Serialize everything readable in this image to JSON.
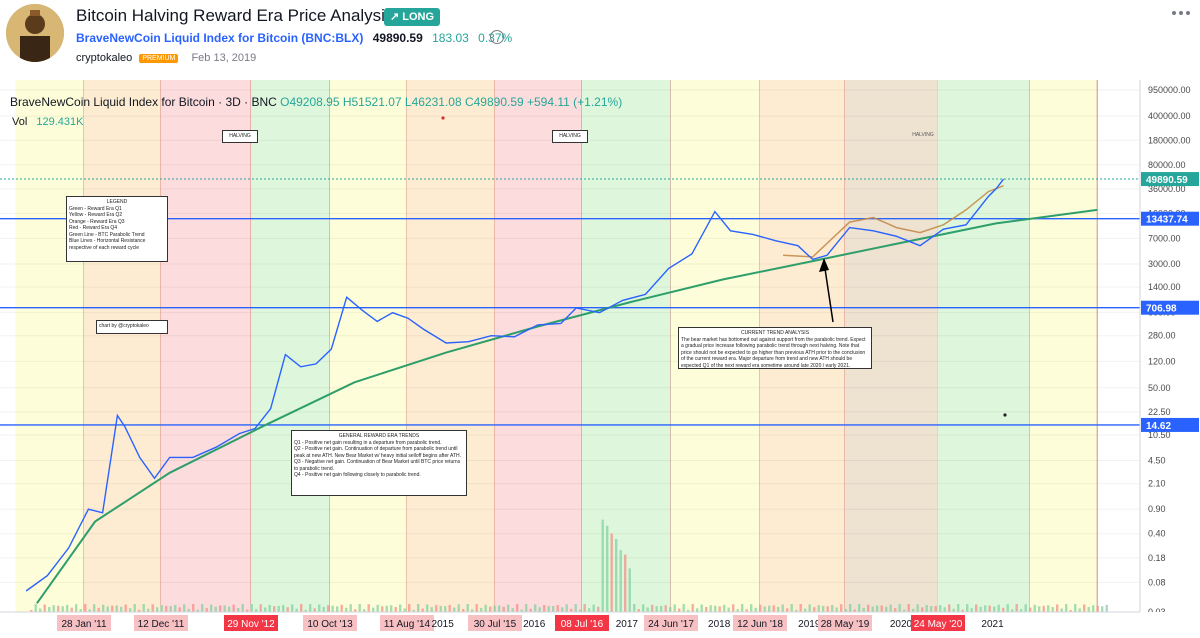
{
  "header": {
    "title": "Bitcoin Halving Reward Era Price Analysis",
    "badge": "LONG",
    "symbol_name": "BraveNewCoin Liquid Index for Bitcoin",
    "symbol_code": "(BNC:BLX)",
    "price": "49890.59",
    "change": "183.03",
    "change_pct": "0.37%",
    "author": "cryptokaleo",
    "author_badge": "PREMIUM",
    "date": "Feb 13, 2019"
  },
  "legend": {
    "instrument": "BraveNewCoin Liquid Index for Bitcoin · 3D · BNC",
    "ohlc": "O49208.95 H51521.07 L46231.08 C49890.59 +594.11 (+1.21%)",
    "vol_label": "Vol",
    "vol_value": "129.431K"
  },
  "notes": {
    "legend_box": [
      "LEGEND",
      "Green - Reward Era Q1",
      "Yellow - Reward Era Q2",
      "Orange - Reward Era Q3",
      "Red - Reward Era Q4",
      "Green Line - BTC Parabolic Trend",
      "Blue Lines - Horizontal Resistance",
      "respective of each reward cycle"
    ],
    "author_note": "chart by @cryptokaleo",
    "trend_title": "CURRENT TREND ANALYSIS",
    "trend_text": "The bear market has bottomed out against support from the parabolic trend. Expect a gradual price increase following parabolic trend through next halving. Note that price should not be expected to go higher than previous ATH prior to the conclusion of the current reward era. Major departure from trend and new ATH should be expected Q1 of the next reward era sometime around late 2020 / early 2021.",
    "general_title": "GENERAL REWARD ERA TRENDS",
    "general_lines": [
      "Q1 - Positive net gain resulting in a departure from parabolic trend.",
      "Q2 - Positive net gain. Continuation of departure from parabolic trend until peak at new ATH. New Bear Market w/ heavy initial selloff begins after ATH.",
      "Q3 - Negative net gain. Continuation of Bear Market until BTC price returns to parabolic trend.",
      "Q4 - Positive net gain following closely to parabolic trend."
    ],
    "halving_label": "HALVING"
  },
  "chart_data": {
    "type": "line",
    "title": "BraveNewCoin Liquid Index for Bitcoin · 3D · BNC",
    "y_scale": "log",
    "y_tick_labels": [
      "950000.00",
      "400000.00",
      "180000.00",
      "80000.00",
      "36000.00",
      "16000.00",
      "7000.00",
      "3000.00",
      "1400.00",
      "600.00",
      "280.00",
      "120.00",
      "50.00",
      "22.50",
      "10.50",
      "4.50",
      "2.10",
      "0.90",
      "0.40",
      "0.18",
      "0.08",
      "0.03"
    ],
    "x_date_labels": [
      "28 Jan '11",
      "12 Dec '11",
      "29 Nov '12",
      "10 Oct '13",
      "11 Aug '14",
      "2015",
      "30 Jul '15",
      "2016",
      "08 Jul '16",
      "2017",
      "24 Jun '17",
      "2018",
      "12 Jun '18",
      "2019",
      "28 May '19",
      "2020",
      "24 May '20",
      "2021"
    ],
    "highlighted_dates": [
      "29 Nov '12",
      "08 Jul '16",
      "24 May '20"
    ],
    "price_labels": [
      {
        "value": "49890.59",
        "color": "#26a69a"
      },
      {
        "value": "13437.74",
        "color": "#2962ff"
      },
      {
        "value": "706.98",
        "color": "#2962ff"
      },
      {
        "value": "14.62",
        "color": "#2962ff"
      }
    ],
    "resistance_levels": [
      13437.74,
      706.98,
      14.62
    ],
    "eras": [
      {
        "era": "Q2",
        "color": "yellow",
        "from": "2010-07",
        "to": "2011-01-28"
      },
      {
        "era": "Q3",
        "color": "orange",
        "from": "2011-01-28",
        "to": "2011-12-12"
      },
      {
        "era": "Q4",
        "color": "red",
        "from": "2011-12-12",
        "to": "2012-11-29"
      },
      {
        "era": "Q1",
        "color": "green",
        "from": "2012-11-29",
        "to": "2013-10-10"
      },
      {
        "era": "Q2",
        "color": "yellow",
        "from": "2013-10-10",
        "to": "2014-08-11"
      },
      {
        "era": "Q3",
        "color": "orange",
        "from": "2014-08-11",
        "to": "2015-07-30"
      },
      {
        "era": "Q4",
        "color": "red",
        "from": "2015-07-30",
        "to": "2016-07-08"
      },
      {
        "era": "Q1",
        "color": "green",
        "from": "2016-07-08",
        "to": "2017-06-24"
      },
      {
        "era": "Q2",
        "color": "yellow",
        "from": "2017-06-24",
        "to": "2018-06-12"
      },
      {
        "era": "Q3",
        "color": "orange",
        "from": "2018-06-12",
        "to": "2019-05-28"
      },
      {
        "era": "Q4",
        "color": "red",
        "from": "2019-05-28",
        "to": "2020-05-24"
      },
      {
        "era": "Q1",
        "color": "green",
        "from": "2020-05-24",
        "to": "2021-05"
      },
      {
        "era": "Q2",
        "color": "yellow",
        "from": "2021-05",
        "to": "2021-09"
      }
    ],
    "series": [
      {
        "name": "BraveNewCoin Liquid Index for Bitcoin",
        "points": [
          [
            "2010-08",
            0.06
          ],
          [
            "2010-10",
            0.1
          ],
          [
            "2010-12",
            0.25
          ],
          [
            "2011-02",
            0.9
          ],
          [
            "2011-04",
            0.8
          ],
          [
            "2011-06",
            20
          ],
          [
            "2011-07",
            14
          ],
          [
            "2011-09",
            5
          ],
          [
            "2011-11",
            2.5
          ],
          [
            "2012-01",
            5
          ],
          [
            "2012-04",
            5
          ],
          [
            "2012-07",
            7
          ],
          [
            "2012-10",
            11
          ],
          [
            "2012-12",
            13
          ],
          [
            "2013-02",
            25
          ],
          [
            "2013-04",
            150
          ],
          [
            "2013-06",
            100
          ],
          [
            "2013-08",
            110
          ],
          [
            "2013-10",
            180
          ],
          [
            "2013-12",
            1000
          ],
          [
            "2014-02",
            650
          ],
          [
            "2014-04",
            450
          ],
          [
            "2014-06",
            600
          ],
          [
            "2014-08",
            500
          ],
          [
            "2014-10",
            350
          ],
          [
            "2015-01",
            220
          ],
          [
            "2015-04",
            230
          ],
          [
            "2015-07",
            280
          ],
          [
            "2015-10",
            270
          ],
          [
            "2016-01",
            400
          ],
          [
            "2016-04",
            420
          ],
          [
            "2016-06",
            700
          ],
          [
            "2016-09",
            600
          ],
          [
            "2016-12",
            900
          ],
          [
            "2017-03",
            1100
          ],
          [
            "2017-06",
            2600
          ],
          [
            "2017-09",
            4200
          ],
          [
            "2017-12",
            17000
          ],
          [
            "2018-02",
            9000
          ],
          [
            "2018-05",
            8000
          ],
          [
            "2018-08",
            6500
          ],
          [
            "2018-11",
            5500
          ],
          [
            "2019-01",
            3500
          ],
          [
            "2019-03",
            4000
          ],
          [
            "2019-06",
            10000
          ],
          [
            "2019-09",
            9000
          ],
          [
            "2019-12",
            7500
          ],
          [
            "2020-03",
            5500
          ],
          [
            "2020-06",
            9500
          ],
          [
            "2020-09",
            11000
          ],
          [
            "2020-12",
            28000
          ],
          [
            "2021-01",
            36000
          ],
          [
            "2021-02",
            49890.59
          ]
        ]
      },
      {
        "name": "BTC Parabolic Trend",
        "points": [
          [
            "2010-09",
            0.04
          ],
          [
            "2011-03",
            0.6
          ],
          [
            "2012-01",
            3
          ],
          [
            "2013-01",
            14
          ],
          [
            "2014-01",
            60
          ],
          [
            "2015-01",
            160
          ],
          [
            "2016-01",
            380
          ],
          [
            "2017-01",
            850
          ],
          [
            "2018-01",
            1800
          ],
          [
            "2019-01",
            3300
          ],
          [
            "2020-01",
            6200
          ],
          [
            "2021-01",
            11500
          ],
          [
            "2021-09",
            18000
          ]
        ]
      },
      {
        "name": "Projected path",
        "points": [
          [
            "2018-09",
            4000
          ],
          [
            "2019-01",
            3800
          ],
          [
            "2019-06",
            12000
          ],
          [
            "2019-09",
            14000
          ],
          [
            "2019-12",
            10000
          ],
          [
            "2020-03",
            8500
          ],
          [
            "2020-06",
            11000
          ],
          [
            "2020-09",
            18000
          ],
          [
            "2020-12",
            33000
          ],
          [
            "2021-02",
            40000
          ]
        ]
      }
    ],
    "grid": true
  }
}
